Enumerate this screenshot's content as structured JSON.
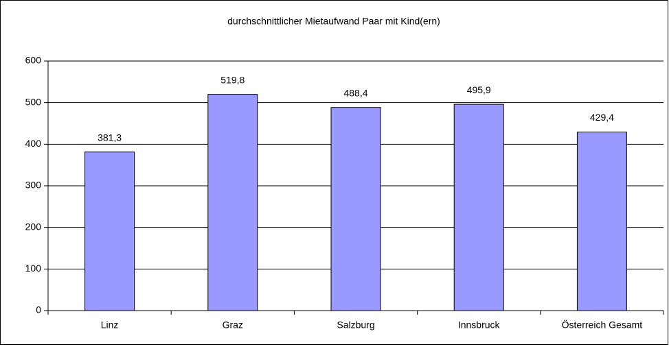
{
  "chart_data": {
    "type": "bar",
    "title": "durchschnittlicher Mietaufwand Paar mit Kind(ern)",
    "categories": [
      "Linz",
      "Graz",
      "Salzburg",
      "Innsbruck",
      "Österreich Gesamt"
    ],
    "values": [
      381.3,
      519.8,
      488.4,
      495.9,
      429.4
    ],
    "value_labels": [
      "381,3",
      "519,8",
      "488,4",
      "495,9",
      "429,4"
    ],
    "color": "#9999ff",
    "ylim": [
      0,
      600
    ],
    "yticks": [
      0,
      100,
      200,
      300,
      400,
      500,
      600
    ],
    "grid": true
  }
}
